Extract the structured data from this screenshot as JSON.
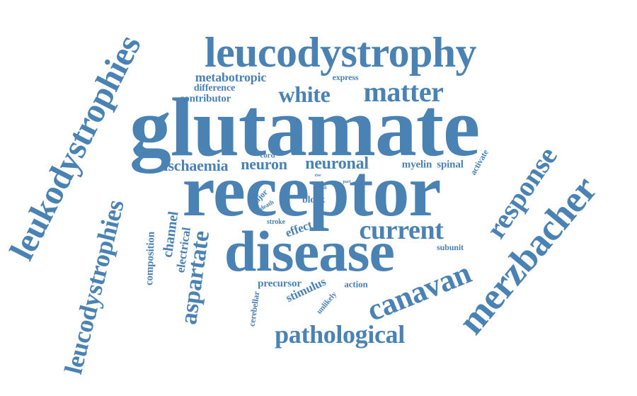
{
  "color": "#4a82b4",
  "words": [
    "glutamate",
    "receptor",
    "disease",
    "leucodystrophy",
    "matter",
    "white",
    "leukodystrophies",
    "leucodystrophies",
    "merzbacher",
    "canavan",
    "response",
    "current",
    "pathological",
    "aspartate",
    "neuronal",
    "neuron",
    "ischaemia",
    "metabotropic",
    "difference",
    "contributor",
    "express",
    "myelin",
    "spinal",
    "activate",
    "cord",
    "channel",
    "electrical",
    "composition",
    "effect",
    "block",
    "major",
    "death",
    "stroke",
    "precursor",
    "stimulus",
    "action",
    "subunit",
    "cerebellar",
    "unlikely",
    "rise",
    "fail",
    "cell",
    "part"
  ]
}
